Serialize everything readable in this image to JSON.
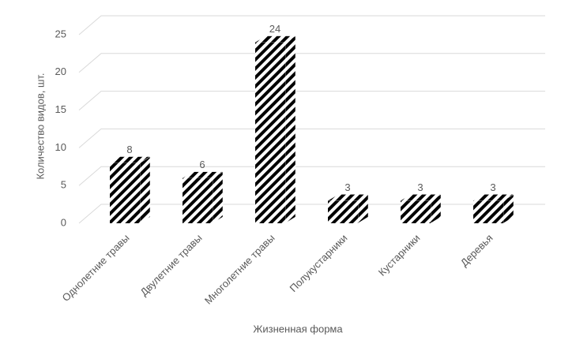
{
  "chart_data": {
    "type": "bar",
    "categories": [
      "Однолетние травы",
      "Двулетние травы",
      "Многолетние травы",
      "Полукустарники",
      "Кустарники",
      "Деревья"
    ],
    "values": [
      8,
      6,
      24,
      3,
      3,
      3
    ],
    "color": "#000000",
    "ylim": [
      0,
      25
    ],
    "yticks": [
      0,
      5,
      10,
      15,
      20,
      25
    ],
    "grid": true,
    "xlabel": "Жизненная форма",
    "ylabel": "Количество видов, шт."
  }
}
